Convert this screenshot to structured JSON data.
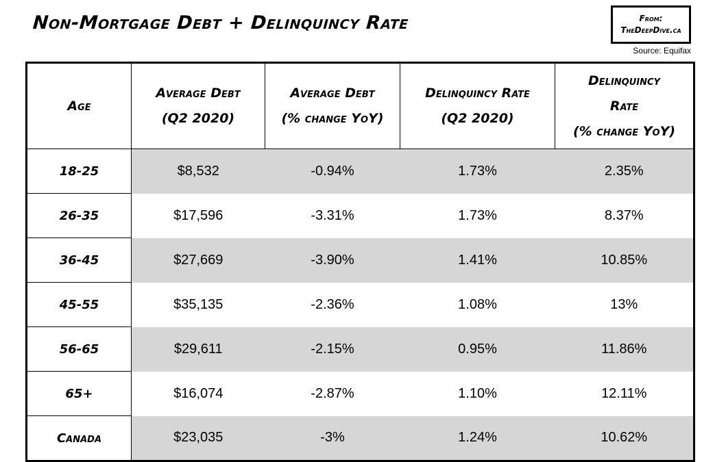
{
  "title": "Non-Mortgage Debt + Delinquincy Rate",
  "brand": {
    "line1": "From:",
    "line2": "TheDeepDive.ca"
  },
  "source": "Source: Equifax",
  "table": {
    "headers": [
      {
        "lines": [
          "Age"
        ]
      },
      {
        "lines": [
          "Average Debt",
          "(Q2 2020)"
        ]
      },
      {
        "lines": [
          "Average Debt",
          "(% change YoY)"
        ]
      },
      {
        "lines": [
          "Delinquincy Rate",
          "(Q2 2020)"
        ]
      },
      {
        "lines": [
          "Delinquincy",
          "Rate",
          "(% change YoY)"
        ]
      }
    ],
    "rows": [
      [
        "18-25",
        "$8,532",
        "-0.94%",
        "1.73%",
        "2.35%"
      ],
      [
        "26-35",
        "$17,596",
        "-3.31%",
        "1.73%",
        "8.37%"
      ],
      [
        "36-45",
        "$27,669",
        "-3.90%",
        "1.41%",
        "10.85%"
      ],
      [
        "45-55",
        "$35,135",
        "-2.36%",
        "1.08%",
        "13%"
      ],
      [
        "56-65",
        "$29,611",
        "-2.15%",
        "0.95%",
        "11.86%"
      ],
      [
        "65+",
        "$16,074",
        "-2.87%",
        "1.10%",
        "12.11%"
      ],
      [
        "Canada",
        "$23,035",
        "-3%",
        "1.24%",
        "10.62%"
      ]
    ],
    "row_shade_color": "#d6d6d6"
  }
}
